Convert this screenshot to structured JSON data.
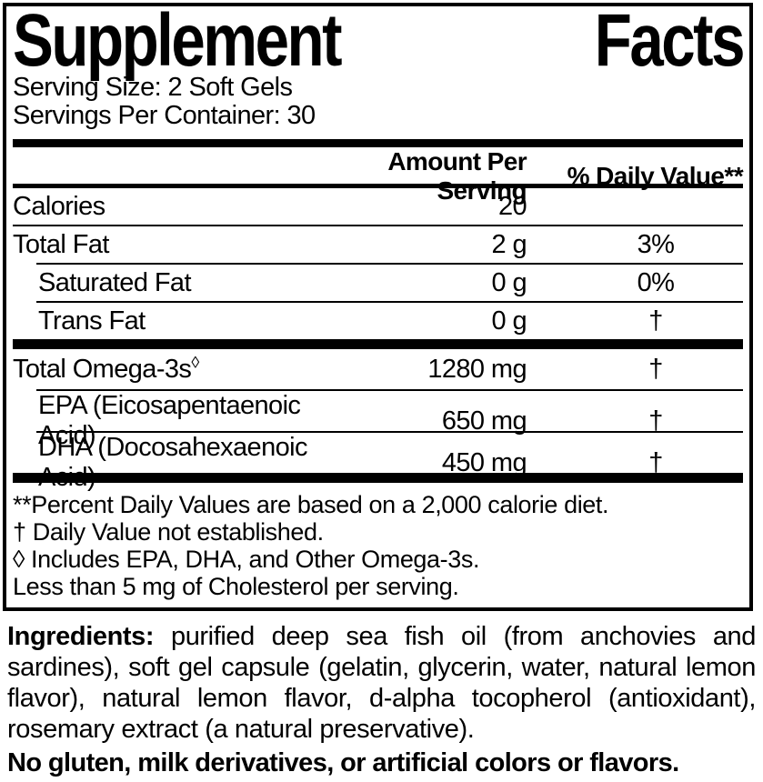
{
  "panel": {
    "title": "Supplement Facts",
    "serving_size": "Serving Size: 2 Soft Gels",
    "servings_per_container": "Servings Per Container: 30",
    "columns": {
      "amount": "Amount Per Serving",
      "daily_value": "% Daily Value**"
    },
    "rows": [
      {
        "name": "Calories",
        "amount": "20",
        "dv": ""
      },
      {
        "name": "Total Fat",
        "amount": "2 g",
        "dv": "3%"
      },
      {
        "name": "Saturated Fat",
        "amount": "0 g",
        "dv": "0%"
      },
      {
        "name": "Trans Fat",
        "amount": "0 g",
        "dv": "†"
      },
      {
        "name": "Total Omega-3s",
        "sup": "◊",
        "amount": "1280 mg",
        "dv": "†"
      },
      {
        "name": "EPA (Eicosapentaenoic Acid)",
        "amount": "650 mg",
        "dv": "†"
      },
      {
        "name": "DHA (Docosahexaenoic Acid)",
        "amount": "450 mg",
        "dv": "†"
      }
    ],
    "footnotes": [
      "**Percent Daily Values are based on a 2,000 calorie diet.",
      "† Daily Value not established.",
      "◊ Includes EPA, DHA, and Other Omega-3s.",
      "Less than 5 mg of Cholesterol per serving."
    ]
  },
  "ingredients": {
    "label": "Ingredients:",
    "text": "purified deep sea fish oil (from anchovies and sardines), soft gel capsule (gelatin, glycerin, water, natural lemon flavor), natural lemon flavor, d-alpha tocopherol (antioxidant), rosemary extract (a natural preservative)."
  },
  "allergen_statement": "No gluten, milk derivatives, or artificial colors or flavors.",
  "colors": {
    "text": "#000000",
    "background": "#ffffff",
    "rule": "#000000"
  }
}
